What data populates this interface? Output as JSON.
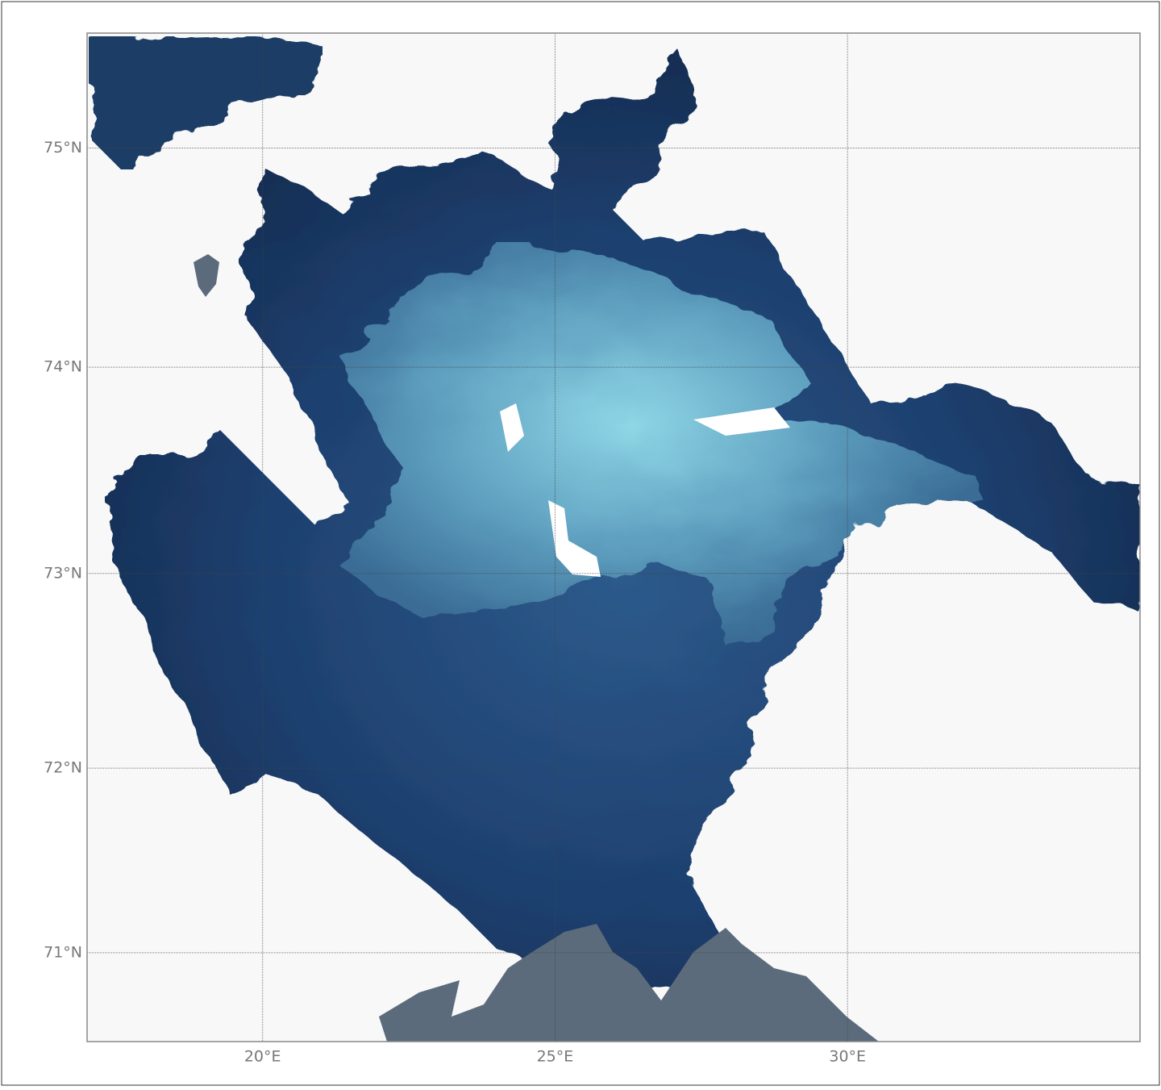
{
  "map": {
    "projection": "mercator",
    "xlim": [
      17,
      35
    ],
    "ylim": [
      70.5,
      75.5
    ],
    "xticks": [
      {
        "value": 20,
        "label": "20°E"
      },
      {
        "value": 25,
        "label": "25°E"
      },
      {
        "value": 30,
        "label": "30°E"
      }
    ],
    "yticks": [
      {
        "value": 71,
        "label": "71°N"
      },
      {
        "value": 72,
        "label": "72°N"
      },
      {
        "value": 73,
        "label": "73°N"
      },
      {
        "value": 74,
        "label": "74°N"
      },
      {
        "value": 75,
        "label": "75°N"
      }
    ],
    "grid": true
  }
}
